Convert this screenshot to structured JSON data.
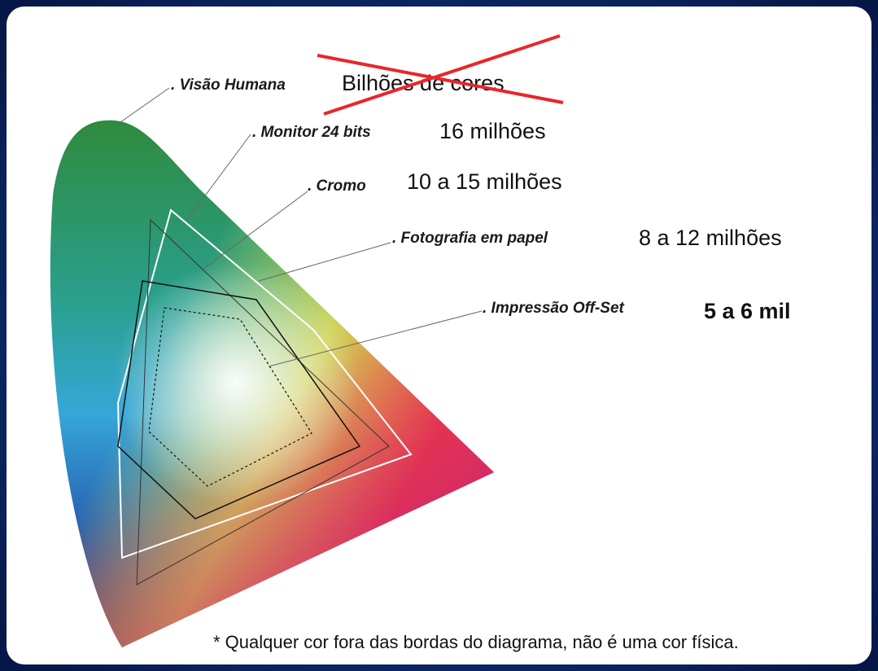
{
  "labels": [
    {
      "name": ". Visão Humana",
      "value": "Bilhões de cores"
    },
    {
      "name": ". Monitor 24 bits",
      "value": "16 milhões"
    },
    {
      "name": ". Cromo",
      "value": "10 a 15  milhões"
    },
    {
      "name": ". Fotografia em papel",
      "value": "8 a 12  milhões"
    },
    {
      "name": ". Impressão Off-Set",
      "value": "5 a 6 mil"
    }
  ],
  "footnote": "* Qualquer cor fora das bordas do diagrama,  não é uma cor física."
}
